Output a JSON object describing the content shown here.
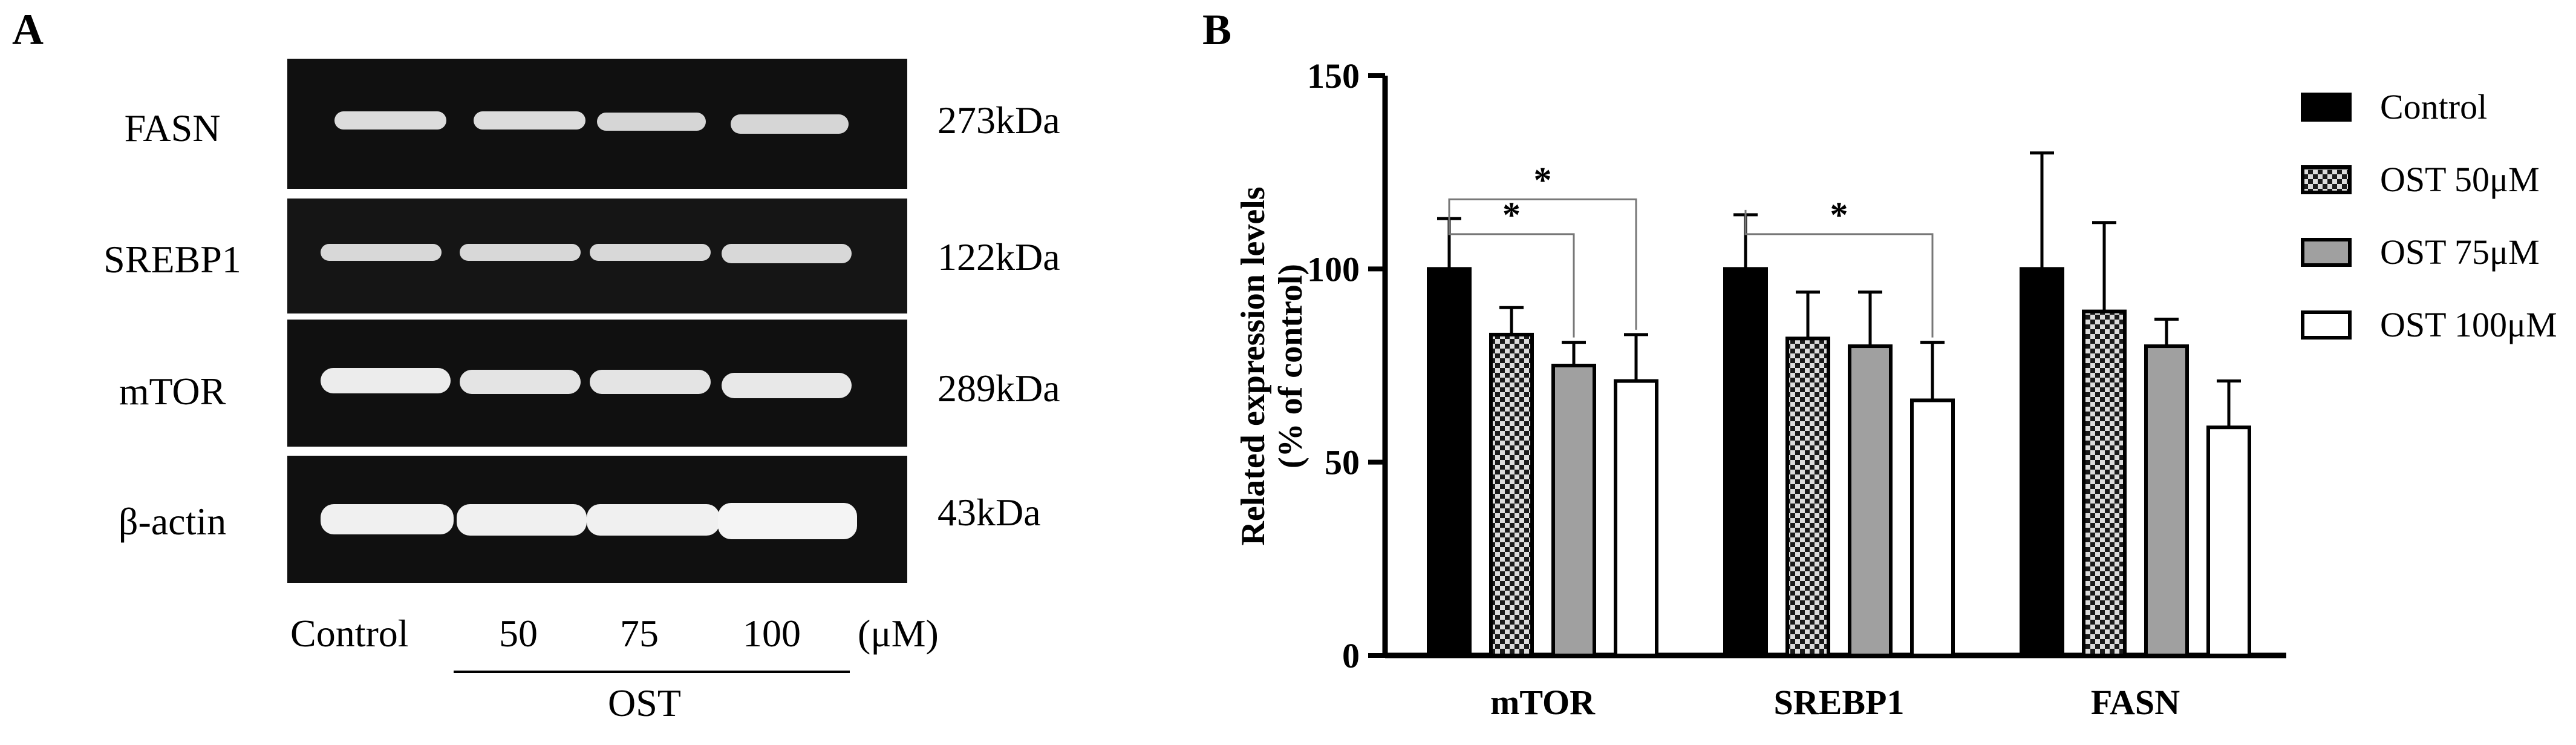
{
  "panel_labels": {
    "a": "A",
    "b": "B"
  },
  "blot": {
    "rows": [
      {
        "protein": "FASN",
        "kda": "273kDa"
      },
      {
        "protein": "SREBP1",
        "kda": "122kDa"
      },
      {
        "protein": "mTOR",
        "kda": "289kDa"
      },
      {
        "protein": "β-actin",
        "kda": "43kDa"
      }
    ],
    "lanes": [
      "Control",
      "50",
      "75",
      "100"
    ],
    "unit": "(μM)",
    "group_label": "OST"
  },
  "colors": {
    "blot_bg": "#101010",
    "band": "#e4e4e4",
    "bar_control": "#000000",
    "bar_75": "#a0a0a0",
    "bar_100": "#ffffff"
  },
  "chart_data": {
    "type": "bar",
    "title": "",
    "xlabel": "",
    "ylabel": [
      "Related expression levels",
      "(% of control)"
    ],
    "ylim": [
      0,
      150
    ],
    "yticks": [
      0,
      50,
      100,
      150
    ],
    "categories": [
      "mTOR",
      "SREBP1",
      "FASN"
    ],
    "series": [
      {
        "name": "Control",
        "values": [
          100,
          100,
          100
        ],
        "errors": [
          13,
          14,
          30
        ]
      },
      {
        "name": "OST 50μM",
        "values": [
          83,
          82,
          89
        ],
        "errors": [
          7,
          12,
          23
        ]
      },
      {
        "name": "OST 75μM",
        "values": [
          75,
          80,
          80
        ],
        "errors": [
          6,
          14,
          7
        ]
      },
      {
        "name": "OST 100μM",
        "values": [
          71,
          66,
          59
        ],
        "errors": [
          12,
          15,
          12
        ]
      }
    ],
    "significance": [
      {
        "category": 0,
        "from": 0,
        "to": 2,
        "label": "*"
      },
      {
        "category": 0,
        "from": 0,
        "to": 3,
        "label": "*"
      },
      {
        "category": 1,
        "from": 0,
        "to": 3,
        "label": "*"
      }
    ],
    "legend_position": "right"
  }
}
